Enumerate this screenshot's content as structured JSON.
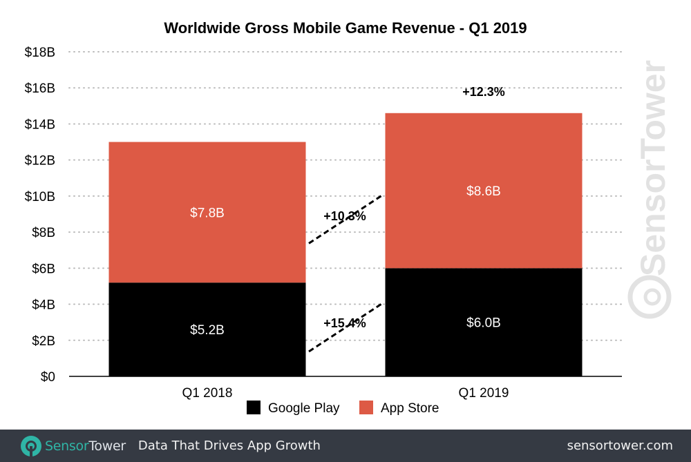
{
  "chart_data": {
    "type": "bar",
    "stacked": true,
    "title": "Worldwide Gross Mobile Game Revenue - Q1 2019",
    "categories": [
      "Q1 2018",
      "Q1 2019"
    ],
    "series": [
      {
        "name": "Google Play",
        "values": [
          5.2,
          6.0
        ],
        "labels": [
          "$5.2B",
          "$6.0B"
        ],
        "color": "#000000"
      },
      {
        "name": "App Store",
        "values": [
          7.8,
          8.6
        ],
        "labels": [
          "$7.8B",
          "$8.6B"
        ],
        "color": "#dd5a45"
      }
    ],
    "ylim": [
      0,
      18
    ],
    "yticks": [
      0,
      2,
      4,
      6,
      8,
      10,
      12,
      14,
      16,
      18
    ],
    "ytick_labels": [
      "$0",
      "$2B",
      "$4B",
      "$6B",
      "$8B",
      "$10B",
      "$12B",
      "$14B",
      "$16B",
      "$18B"
    ],
    "grid": true,
    "legend": "bottom-center",
    "annotations": {
      "google_growth": "+15.4%",
      "appstore_growth": "+10.3%",
      "total_growth": "+12.3%"
    },
    "watermark": "SensorTower"
  },
  "footer": {
    "brand_a": "Sensor",
    "brand_b": "Tower",
    "tagline": "Data That Drives App Growth",
    "site": "sensortower.com"
  }
}
